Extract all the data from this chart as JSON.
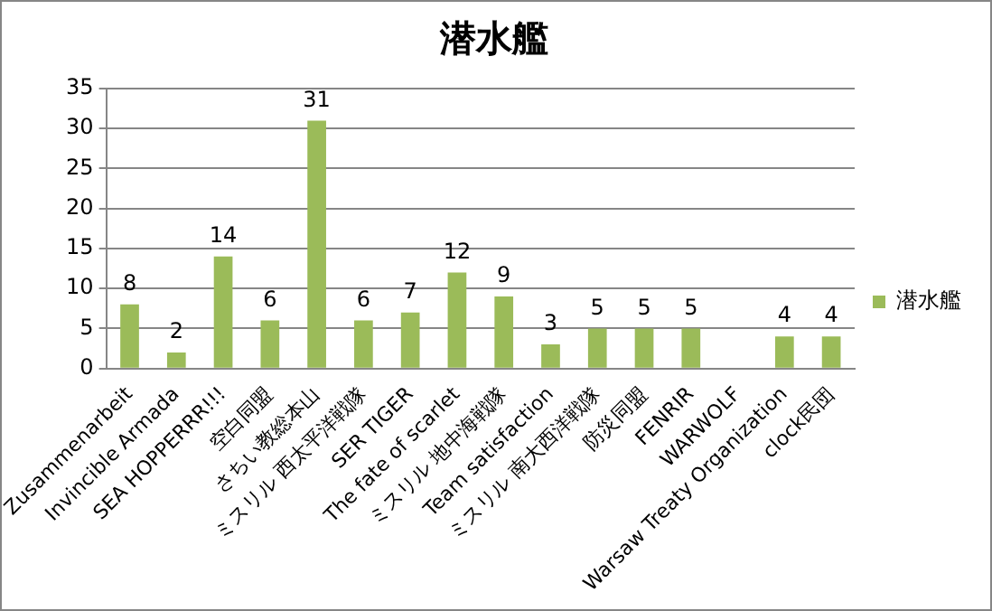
{
  "chart_data": {
    "type": "bar",
    "title": "潜水艦",
    "categories": [
      "Zusammenarbeit",
      "Invincible Armada",
      "SEA HOPPERRR!!!",
      "空白同盟",
      "さちい教総本山",
      "ミスリル 西太平洋戦隊",
      "SER TIGER",
      "The fate of scarlet",
      "ミスリル 地中海戦隊",
      "Team satisfaction",
      "ミスリル 南大西洋戦隊",
      "防災同盟",
      "FENRIR",
      "WARWOLF",
      "Warsaw Treaty Organization",
      "clock民団"
    ],
    "series": [
      {
        "name": "潜水艦",
        "color": "#9bbb59",
        "values": [
          8,
          2,
          14,
          6,
          31,
          6,
          7,
          12,
          9,
          3,
          5,
          5,
          5,
          null,
          4,
          4
        ]
      }
    ],
    "ylim": [
      0,
      35
    ],
    "yticks": [
      0,
      5,
      10,
      15,
      20,
      25,
      30,
      35
    ],
    "grid": "y",
    "legend": "right",
    "data_labels": true
  }
}
